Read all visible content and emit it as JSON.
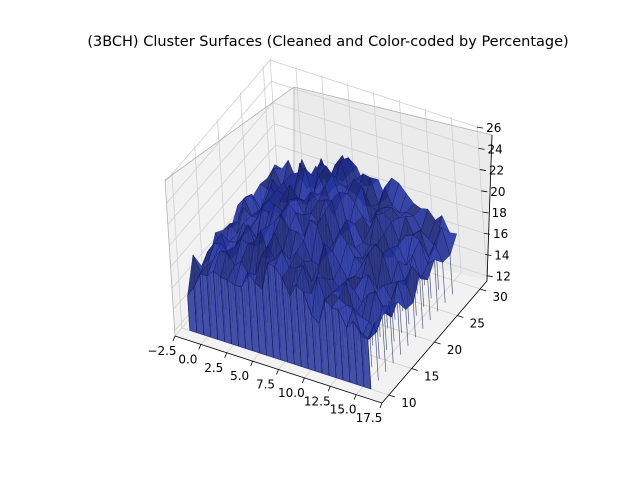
{
  "chart_data": {
    "type": "surface3d",
    "title": "(3BCH) Cluster Surfaces (Cleaned and Color-coded by Percentage)",
    "xlabel": "",
    "ylabel": "",
    "zlabel": "",
    "x_ticks": [
      "−2.5",
      "0.0",
      "2.5",
      "5.0",
      "7.5",
      "10.0",
      "12.5",
      "15.0",
      "17.5"
    ],
    "y_ticks": [
      "10",
      "15",
      "20",
      "25",
      "30"
    ],
    "z_ticks": [
      "12",
      "14",
      "16",
      "18",
      "20",
      "22",
      "24",
      "26"
    ],
    "xlim": [
      -2.5,
      17.5
    ],
    "ylim": [
      8.5,
      31.5
    ],
    "zlim": [
      11.5,
      26.2
    ],
    "grid": true,
    "surface_color": "#26349a",
    "surface_edge_color": "#101a5a",
    "surface_extent": {
      "x": [
        -1.0,
        16.5
      ],
      "y": [
        8.5,
        28.0
      ],
      "z": [
        12.5,
        23.0
      ]
    }
  }
}
